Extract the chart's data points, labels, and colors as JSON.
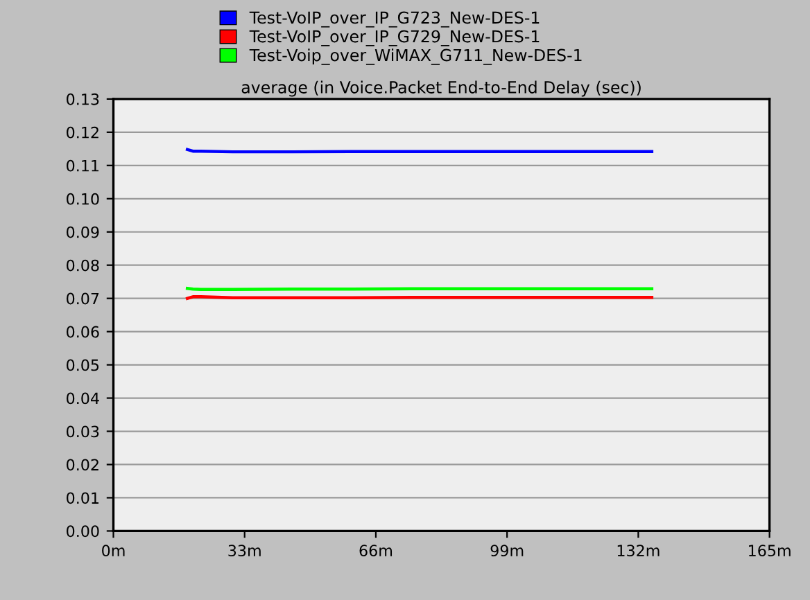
{
  "chart_data": {
    "type": "line",
    "title": "average (in Voice.Packet End-to-End Delay (sec))",
    "x": [
      18.6,
      20,
      22,
      30,
      45,
      60,
      75,
      90,
      105,
      120,
      135.4
    ],
    "series": [
      {
        "name": "Test-VoIP_over_IP_G723_New-DES-1",
        "color": "#0000ff",
        "values": [
          0.1148,
          0.1143,
          0.1143,
          0.1141,
          0.1141,
          0.1142,
          0.1142,
          0.1142,
          0.1142,
          0.1142,
          0.1142
        ]
      },
      {
        "name": "Test-VoIP_over_IP_G729_New-DES-1",
        "color": "#ff0000",
        "values": [
          0.07,
          0.0705,
          0.0705,
          0.0702,
          0.0702,
          0.0702,
          0.0703,
          0.0703,
          0.0703,
          0.0703,
          0.0703
        ]
      },
      {
        "name": "Test-Voip_over_WiMAX_G711_New-DES-1",
        "color": "#00ff00",
        "values": [
          0.073,
          0.0728,
          0.0727,
          0.0727,
          0.0728,
          0.0728,
          0.0729,
          0.0729,
          0.0729,
          0.0729,
          0.0729
        ]
      }
    ],
    "xlim": [
      0,
      165
    ],
    "xticks": [
      {
        "value": 0,
        "label": "0m"
      },
      {
        "value": 33,
        "label": "33m"
      },
      {
        "value": 66,
        "label": "66m"
      },
      {
        "value": 99,
        "label": "99m"
      },
      {
        "value": 132,
        "label": "132m"
      },
      {
        "value": 165,
        "label": "165m"
      }
    ],
    "ylim": [
      0,
      0.13
    ],
    "yticks": [
      {
        "value": 0,
        "label": "0.00"
      },
      {
        "value": 0.01,
        "label": "0.01"
      },
      {
        "value": 0.02,
        "label": "0.02"
      },
      {
        "value": 0.03,
        "label": "0.03"
      },
      {
        "value": 0.04,
        "label": "0.04"
      },
      {
        "value": 0.05,
        "label": "0.05"
      },
      {
        "value": 0.06,
        "label": "0.06"
      },
      {
        "value": 0.07,
        "label": "0.07"
      },
      {
        "value": 0.08,
        "label": "0.08"
      },
      {
        "value": 0.09,
        "label": "0.09"
      },
      {
        "value": 0.1,
        "label": "0.10"
      },
      {
        "value": 0.11,
        "label": "0.11"
      },
      {
        "value": 0.12,
        "label": "0.12"
      },
      {
        "value": 0.13,
        "label": "0.13"
      }
    ],
    "grid": "y",
    "legend": "top",
    "line_style": "solid"
  }
}
